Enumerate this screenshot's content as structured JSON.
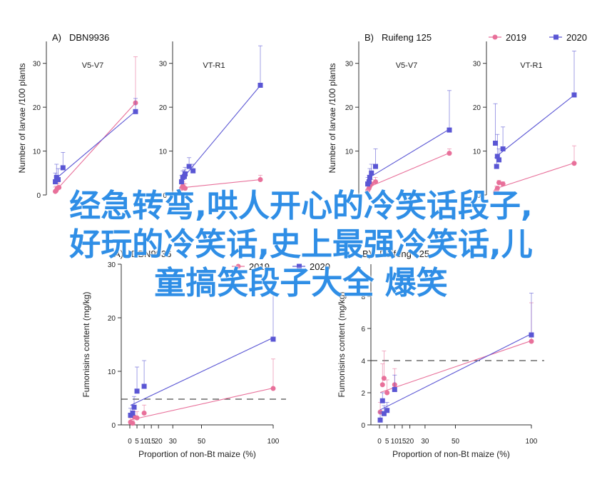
{
  "legend": {
    "items": [
      {
        "label": "2019",
        "color": "#e8709a",
        "marker": "circle"
      },
      {
        "label": "2020",
        "color": "#5a56d4",
        "marker": "square"
      }
    ]
  },
  "overlay": {
    "lines": [
      "经急转弯,哄人开心的冷笑话段子,",
      "好玩的冷笑话,史上最强冷笑话,儿",
      "童搞笑段子大全 爆笑"
    ]
  },
  "chart_data": [
    {
      "type": "scatter",
      "panel_label": "A)",
      "title": "DBN9936",
      "subtitle": "V5-V7",
      "xlabel": "",
      "ylabel": "Number of larvae /100 plants",
      "ylim": [
        0,
        35
      ],
      "yticks": [
        0,
        10,
        20,
        30
      ],
      "series": [
        {
          "name": "2019",
          "points": [
            [
              0.5,
              0.8
            ],
            [
              1.5,
              1
            ],
            [
              3,
              1.5
            ],
            [
              5,
              1.7
            ],
            [
              100,
              21
            ]
          ],
          "err": [
            1,
            1,
            1.2,
            1.5,
            10.5
          ]
        },
        {
          "name": "2020",
          "points": [
            [
              0.5,
              3
            ],
            [
              2,
              4
            ],
            [
              4,
              3.5
            ],
            [
              10,
              6.2
            ],
            [
              100,
              19
            ]
          ],
          "err": [
            2,
            3,
            2.5,
            3.5,
            3
          ]
        }
      ]
    },
    {
      "type": "scatter",
      "panel_label": "",
      "title": "",
      "subtitle": "VT-R1",
      "xlabel": "",
      "ylabel": "",
      "ylim": [
        0,
        35
      ],
      "yticks": [
        0,
        10,
        20,
        30
      ],
      "series": [
        {
          "name": "2019",
          "points": [
            [
              0.5,
              1.5
            ],
            [
              2,
              2
            ],
            [
              3,
              1.7
            ],
            [
              5,
              1.5
            ],
            [
              100,
              3.5
            ]
          ],
          "err": [
            1,
            1,
            1,
            1,
            1
          ]
        },
        {
          "name": "2020",
          "points": [
            [
              0.5,
              3
            ],
            [
              2,
              4
            ],
            [
              4,
              4.2
            ],
            [
              5,
              4.8
            ],
            [
              10,
              6.5
            ],
            [
              15,
              5.5
            ],
            [
              100,
              25
            ]
          ],
          "err": [
            1.5,
            1.5,
            1.5,
            1.5,
            2,
            1.5,
            9
          ]
        }
      ]
    },
    {
      "type": "scatter",
      "panel_label": "B)",
      "title": "Ruifeng 125",
      "subtitle": "V5-V7",
      "xlabel": "",
      "ylabel": "Number of larvae /100 plants",
      "ylim": [
        0,
        35
      ],
      "yticks": [
        0,
        10,
        20,
        30
      ],
      "series": [
        {
          "name": "2019",
          "points": [
            [
              0.5,
              1
            ],
            [
              2,
              1.5
            ],
            [
              3,
              2
            ],
            [
              5,
              2.5
            ],
            [
              10,
              3
            ],
            [
              100,
              9.5
            ]
          ],
          "err": [
            1,
            1,
            1,
            1,
            1,
            1
          ]
        },
        {
          "name": "2020",
          "points": [
            [
              0.5,
              2.5
            ],
            [
              2,
              3
            ],
            [
              3,
              4
            ],
            [
              5,
              5
            ],
            [
              10,
              6.5
            ],
            [
              100,
              14.8
            ]
          ],
          "err": [
            1.5,
            1.5,
            2,
            2,
            4,
            9
          ]
        }
      ]
    },
    {
      "type": "scatter",
      "panel_label": "",
      "title": "",
      "subtitle": "VT-R1",
      "xlabel": "",
      "ylabel": "",
      "ylim": [
        0,
        35
      ],
      "yticks": [
        0,
        10,
        20,
        30
      ],
      "series": [
        {
          "name": "2019",
          "points": [
            [
              0.5,
              0.5
            ],
            [
              2,
              1
            ],
            [
              3,
              1.5
            ],
            [
              5,
              2.8
            ],
            [
              10,
              2.5
            ],
            [
              100,
              7.2
            ]
          ],
          "err": [
            0.5,
            1,
            0.5,
            0.5,
            0.5,
            4
          ]
        },
        {
          "name": "2020",
          "points": [
            [
              0.5,
              11.8
            ],
            [
              2,
              6.5
            ],
            [
              3,
              8.8
            ],
            [
              5,
              8
            ],
            [
              10,
              10.5
            ],
            [
              100,
              22.8
            ]
          ],
          "err": [
            9,
            2,
            5,
            2.5,
            5,
            10
          ]
        }
      ]
    },
    {
      "type": "scatter",
      "panel_label": "A)",
      "title": "DBN9936",
      "subtitle": "",
      "xlabel": "Proportion of non-Bt maize (%)",
      "ylabel": "Fumonisins content (mg/kg)",
      "ylim": [
        0,
        30
      ],
      "yticks": [
        0,
        10,
        20,
        30
      ],
      "threshold": 4.8,
      "series": [
        {
          "name": "2019",
          "points": [
            [
              0.5,
              0.5
            ],
            [
              2,
              0.3
            ],
            [
              3,
              1.5
            ],
            [
              5,
              1.3
            ],
            [
              10,
              2.2
            ],
            [
              100,
              6.8
            ]
          ],
          "err": [
            0.8,
            0.5,
            1.5,
            1.2,
            1.5,
            5.5
          ]
        },
        {
          "name": "2020",
          "points": [
            [
              0.5,
              1.8
            ],
            [
              2,
              2.2
            ],
            [
              3,
              3.3
            ],
            [
              5,
              6.3
            ],
            [
              10,
              7.2
            ],
            [
              100,
              16
            ]
          ],
          "err": [
            1.3,
            1.5,
            2,
            4.5,
            4.8,
            9.5
          ]
        }
      ]
    },
    {
      "type": "scatter",
      "panel_label": "B)",
      "title": "Ruifeng 125",
      "subtitle": "",
      "xlabel": "Proportion of non-Bt maize (%)",
      "ylabel": "Fumonisins content (mg/kg)",
      "ylim": [
        0,
        10
      ],
      "yticks": [
        0,
        2,
        4,
        6,
        8
      ],
      "threshold": 4,
      "series": [
        {
          "name": "2019",
          "points": [
            [
              0.5,
              0.8
            ],
            [
              2,
              2.5
            ],
            [
              3,
              2.9
            ],
            [
              5,
              2
            ],
            [
              10,
              2.5
            ],
            [
              100,
              5.2
            ]
          ],
          "err": [
            0.6,
            1.3,
            1.7,
            0.8,
            1,
            2.4
          ]
        },
        {
          "name": "2020",
          "points": [
            [
              0.5,
              0.3
            ],
            [
              2,
              1.5
            ],
            [
              3,
              0.7
            ],
            [
              5,
              0.9
            ],
            [
              10,
              2.2
            ],
            [
              100,
              5.6
            ]
          ],
          "err": [
            0.5,
            0.5,
            0.5,
            0.5,
            0.9,
            2.6
          ]
        }
      ]
    }
  ]
}
